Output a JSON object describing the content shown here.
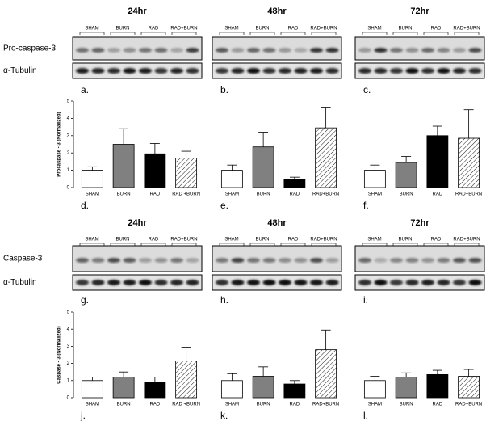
{
  "blot_rows": [
    {
      "headings": [
        "24hr",
        "48hr",
        "72hr"
      ],
      "groups": [
        "SHAM",
        "BURN",
        "RAD",
        "RAD+BURN"
      ],
      "bands": [
        "Pro-caspase-3",
        "α-Tubulin"
      ],
      "panels": [
        "a.",
        "b.",
        "c."
      ]
    },
    {
      "headings": [
        "24hr",
        "48hr",
        "72hr"
      ],
      "groups": [
        "SHAM",
        "BURN",
        "RAD",
        "RAD+BURN"
      ],
      "bands": [
        "Caspase-3",
        "α-Tubulin"
      ],
      "panels": [
        "g.",
        "h.",
        "i."
      ]
    }
  ],
  "chart_data": [
    {
      "type": "bar",
      "panel": "d.",
      "ylabel": "Procaspase - 3 (Normalized)",
      "categories": [
        "SHAM",
        "BURN",
        "RAD",
        "RAD +BURN"
      ],
      "values": [
        1.0,
        2.5,
        1.95,
        1.7
      ],
      "errors": [
        0.2,
        0.9,
        0.6,
        0.4
      ],
      "colors": [
        "#ffffff",
        "#808080",
        "#000000",
        "#ffffff"
      ],
      "hatched": [
        false,
        false,
        false,
        true
      ],
      "ylim": [
        0,
        5
      ],
      "yticks": [
        0,
        1,
        2,
        3,
        4,
        5
      ]
    },
    {
      "type": "bar",
      "panel": "e.",
      "categories": [
        "SHAM",
        "BURN",
        "RAD",
        "RAD+BURN"
      ],
      "values": [
        1.0,
        2.35,
        0.45,
        3.45
      ],
      "errors": [
        0.3,
        0.85,
        0.15,
        1.2
      ],
      "colors": [
        "#ffffff",
        "#808080",
        "#000000",
        "#ffffff"
      ],
      "hatched": [
        false,
        false,
        false,
        true
      ],
      "ylim": [
        0,
        5
      ]
    },
    {
      "type": "bar",
      "panel": "f.",
      "categories": [
        "SHAM",
        "BURN",
        "RAD",
        "RAD+BURN"
      ],
      "values": [
        1.0,
        1.45,
        3.0,
        2.85
      ],
      "errors": [
        0.3,
        0.35,
        0.55,
        1.65
      ],
      "colors": [
        "#ffffff",
        "#808080",
        "#000000",
        "#ffffff"
      ],
      "hatched": [
        false,
        false,
        false,
        true
      ],
      "ylim": [
        0,
        5
      ]
    },
    {
      "type": "bar",
      "panel": "j.",
      "ylabel": "Caspase - 3 (Normalized)",
      "categories": [
        "SHAM",
        "BURN",
        "RAD",
        "RAD +BURN"
      ],
      "values": [
        1.0,
        1.2,
        0.9,
        2.15
      ],
      "errors": [
        0.2,
        0.3,
        0.3,
        0.8
      ],
      "colors": [
        "#ffffff",
        "#808080",
        "#000000",
        "#ffffff"
      ],
      "hatched": [
        false,
        false,
        false,
        true
      ],
      "ylim": [
        0,
        5
      ],
      "yticks": [
        0,
        1,
        2,
        3,
        4,
        5
      ]
    },
    {
      "type": "bar",
      "panel": "k.",
      "categories": [
        "SHAM",
        "BURN",
        "RAD",
        "RAD+BURN"
      ],
      "values": [
        1.0,
        1.25,
        0.8,
        2.8
      ],
      "errors": [
        0.4,
        0.55,
        0.2,
        1.15
      ],
      "colors": [
        "#ffffff",
        "#808080",
        "#000000",
        "#ffffff"
      ],
      "hatched": [
        false,
        false,
        false,
        true
      ],
      "ylim": [
        0,
        5
      ]
    },
    {
      "type": "bar",
      "panel": "l.",
      "categories": [
        "SHAM",
        "BURN",
        "RAD",
        "RAD+BURN"
      ],
      "values": [
        1.0,
        1.2,
        1.35,
        1.25
      ],
      "errors": [
        0.25,
        0.25,
        0.25,
        0.4
      ],
      "colors": [
        "#ffffff",
        "#808080",
        "#000000",
        "#ffffff"
      ],
      "hatched": [
        false,
        false,
        false,
        true
      ],
      "ylim": [
        0,
        5
      ]
    }
  ]
}
